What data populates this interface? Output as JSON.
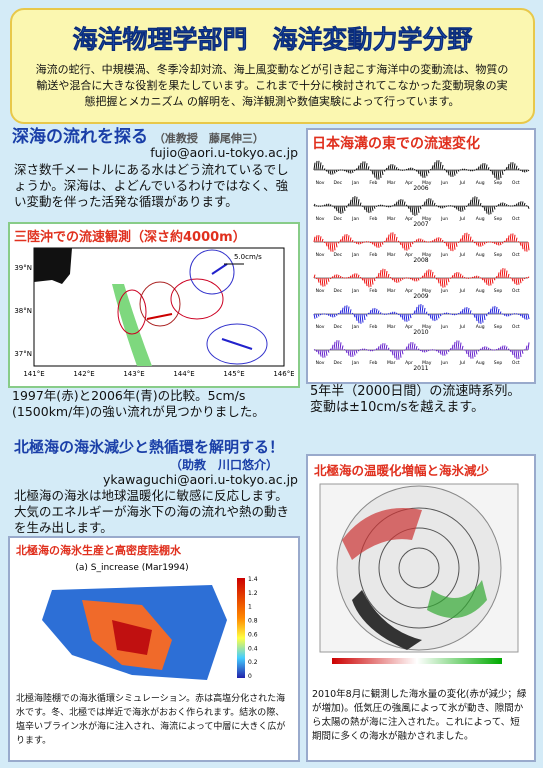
{
  "header": {
    "title": "海洋物理学部門　海洋変動力学分野",
    "description": "海流の蛇行、中規模渦、冬季冷却対流、海上風変動などが引き起こす海洋中の変動流は、物質の輸送や混合に大きな役割を果たしています。これまで十分に検討されてこなかった変動現象の実態把握とメカニズム の解明を、海洋観測や数値実験によって行っています。"
  },
  "deep_sea": {
    "title": "深海の流れを探る",
    "author": "（准教授　藤尾伸三）",
    "email": "fujio@aori.u-tokyo.ac.jp",
    "text": "深さ数千メートルにある水はどう流れているでしょうか。深海は、よどんでいるわけではなく、強い変動を伴った活発な循環があります。",
    "sanriku": {
      "title": "三陸沖での流速観測（深さ約4000m）",
      "scale_label": "5.0cm/s",
      "lon_labels": [
        "141°E",
        "142°E",
        "143°E",
        "144°E",
        "145°E",
        "146°E"
      ],
      "lat_labels": [
        "39°N",
        "38°N",
        "37°N"
      ],
      "caption": "1997年(赤)と2006年(青)の比較。5cm/s (1500km/年)の強い流れが見つかりました。"
    },
    "trench": {
      "title": "日本海溝の東での流速変化",
      "months": [
        "Nov",
        "Dec",
        "Jan",
        "Feb",
        "Mar",
        "Apr",
        "May",
        "Jun",
        "Jul",
        "Aug",
        "Sep",
        "Oct"
      ],
      "years": [
        "2006",
        "2007",
        "2008",
        "2009",
        "2010",
        "2011"
      ],
      "caption": "5年半（2000日間）の流速時系列。変動は±10cm/sを越えます。"
    }
  },
  "arctic": {
    "title": "北極海の海氷減少と熱循環を解明する！",
    "author": "（助教　川口悠介）",
    "email": "ykawaguchi@aori.u-tokyo.ac.jp",
    "text": "北極海の海氷は地球温暖化に敏感に反応します。大気のエネルギーが海氷下の海の流れや熱の動きを生み出します。",
    "production": {
      "title": "北極海の海氷生産と高密度陸棚水",
      "figure_title": "(a) S_increase (Mar1994)",
      "colorbar_ticks": [
        "1.4",
        "1.2",
        "1",
        "0.8",
        "0.6",
        "0.4",
        "0.2",
        "0"
      ],
      "caption": "北極海陸棚での海氷循環シミュレーション。赤は高塩分化された海水です。冬、北極では岸近で海氷がおおく作られます。結氷の際、塩辛いブライン水が海に注入され、海流によって中層に大きく広がります。"
    },
    "warming": {
      "title": "北極海の温暖化増幅と海氷減少",
      "caption": "2010年8月に観測した海水量の変化(赤が減少；緑が増加)。低気圧の強風によって氷が動き、隙間から太陽の熱が海に注入された。これによって、短期間に多くの海水が融かされました。"
    }
  }
}
